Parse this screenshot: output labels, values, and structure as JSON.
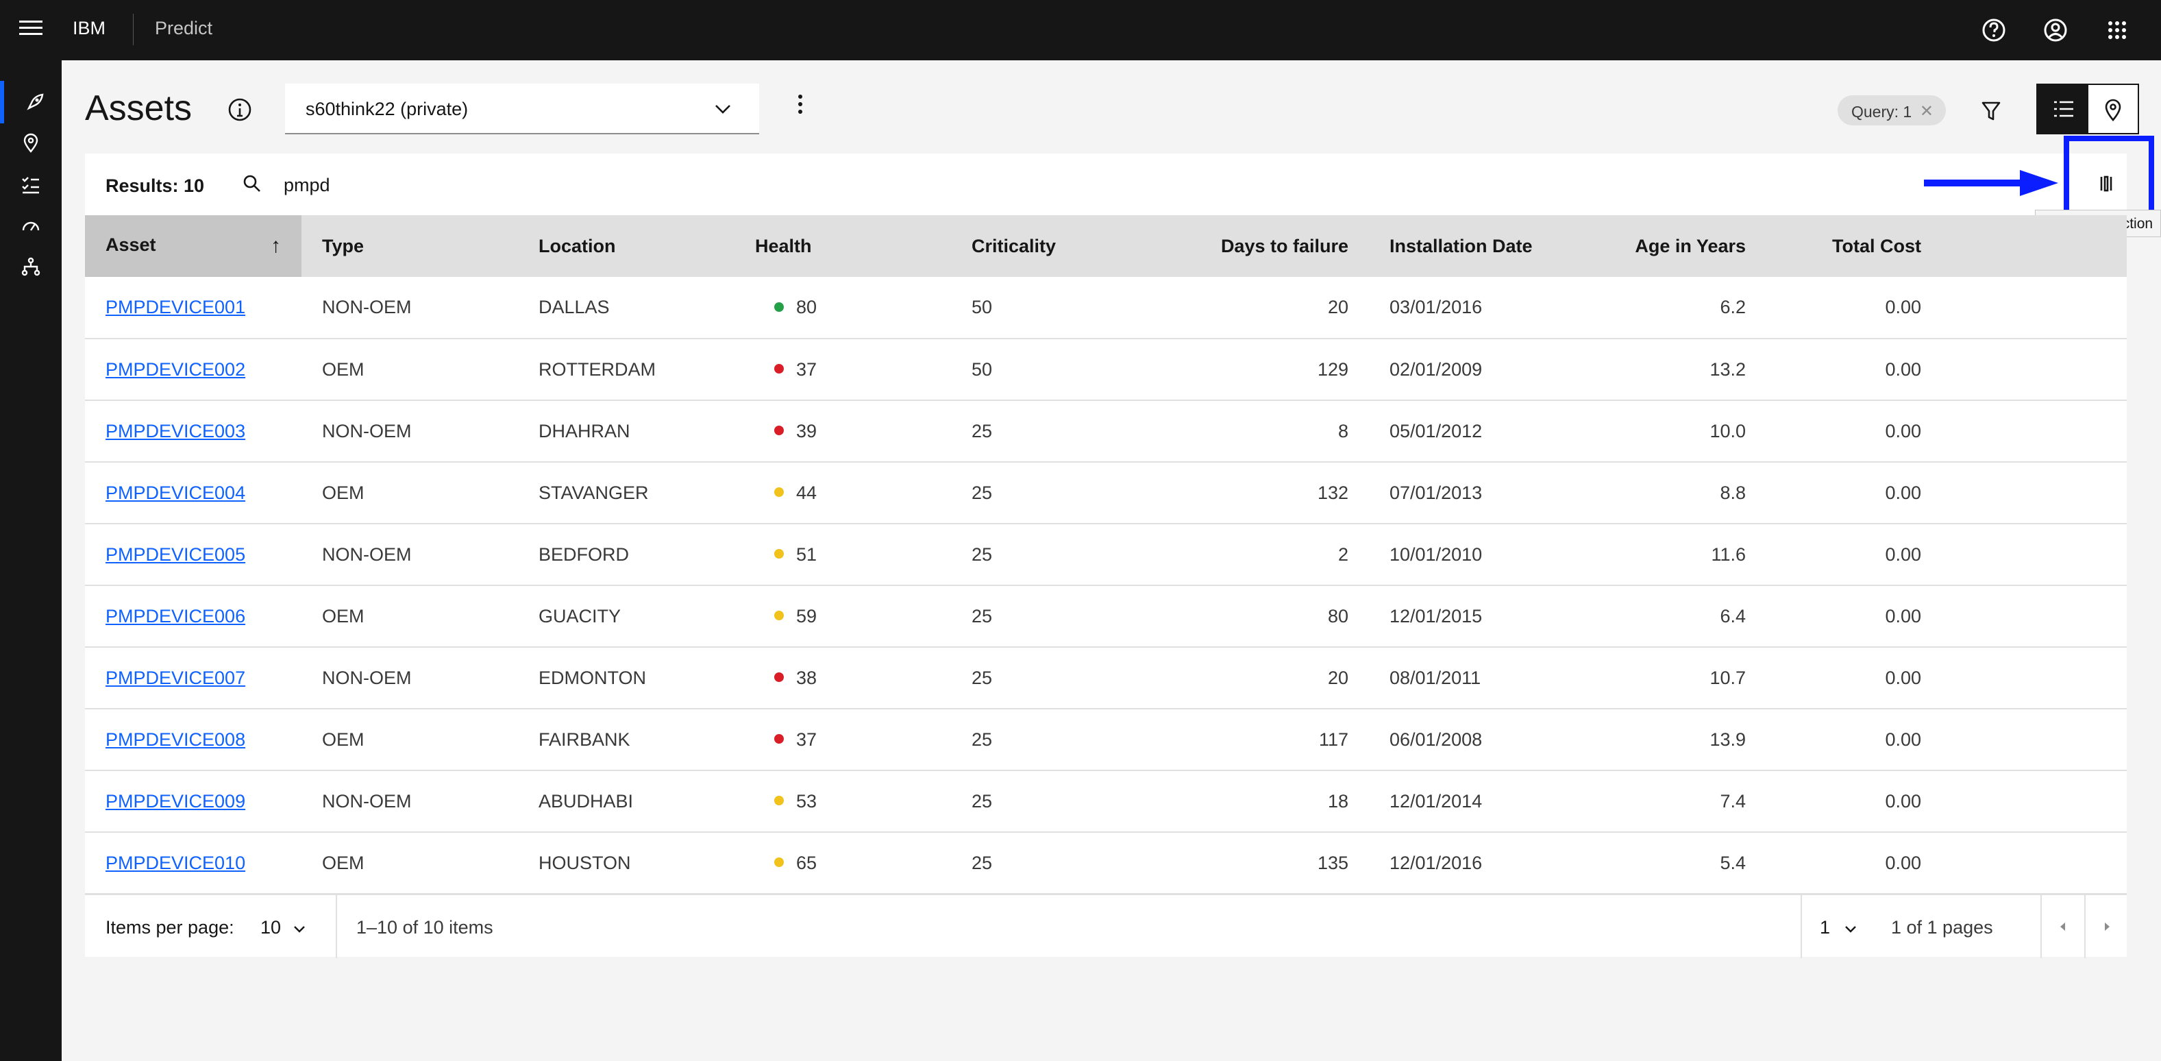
{
  "header": {
    "brand": "IBM",
    "product": "Predict",
    "icons": [
      "menu-icon",
      "help-icon",
      "user-icon",
      "app-switcher-icon"
    ]
  },
  "sidenav": {
    "items": [
      {
        "icon": "rocket-icon",
        "active": true
      },
      {
        "icon": "location-icon",
        "active": false
      },
      {
        "icon": "checklist-icon",
        "active": false
      },
      {
        "icon": "dashboard-icon",
        "active": false
      },
      {
        "icon": "hierarchy-icon",
        "active": false
      }
    ]
  },
  "page": {
    "title": "Assets",
    "group_select": "s60think22 (private)",
    "query_tag": "Query: 1",
    "query_tag_close": "✕"
  },
  "toolbar": {
    "results": "Results: 10",
    "search_value": "pmpd",
    "column_selection_tooltip": "Column selection"
  },
  "table": {
    "columns": [
      "Asset",
      "Type",
      "Location",
      "Health",
      "Criticality",
      "Days to failure",
      "Installation Date",
      "Age in Years",
      "Total Cost"
    ],
    "sorted_column": "Asset",
    "sort_direction": "ascending",
    "rows": [
      {
        "asset": "PMPDEVICE001",
        "type": "NON-OEM",
        "location": "DALLAS",
        "health": "80",
        "health_color": "#24a148",
        "criticality": "50",
        "days": "20",
        "install": "03/01/2016",
        "age": "6.2",
        "cost": "0.00"
      },
      {
        "asset": "PMPDEVICE002",
        "type": "OEM",
        "location": "ROTTERDAM",
        "health": "37",
        "health_color": "#da1e28",
        "criticality": "50",
        "days": "129",
        "install": "02/01/2009",
        "age": "13.2",
        "cost": "0.00"
      },
      {
        "asset": "PMPDEVICE003",
        "type": "NON-OEM",
        "location": "DHAHRAN",
        "health": "39",
        "health_color": "#da1e28",
        "criticality": "25",
        "days": "8",
        "install": "05/01/2012",
        "age": "10.0",
        "cost": "0.00"
      },
      {
        "asset": "PMPDEVICE004",
        "type": "OEM",
        "location": "STAVANGER",
        "health": "44",
        "health_color": "#f1c21b",
        "criticality": "25",
        "days": "132",
        "install": "07/01/2013",
        "age": "8.8",
        "cost": "0.00"
      },
      {
        "asset": "PMPDEVICE005",
        "type": "NON-OEM",
        "location": "BEDFORD",
        "health": "51",
        "health_color": "#f1c21b",
        "criticality": "25",
        "days": "2",
        "install": "10/01/2010",
        "age": "11.6",
        "cost": "0.00"
      },
      {
        "asset": "PMPDEVICE006",
        "type": "OEM",
        "location": "GUACITY",
        "health": "59",
        "health_color": "#f1c21b",
        "criticality": "25",
        "days": "80",
        "install": "12/01/2015",
        "age": "6.4",
        "cost": "0.00"
      },
      {
        "asset": "PMPDEVICE007",
        "type": "NON-OEM",
        "location": "EDMONTON",
        "health": "38",
        "health_color": "#da1e28",
        "criticality": "25",
        "days": "20",
        "install": "08/01/2011",
        "age": "10.7",
        "cost": "0.00"
      },
      {
        "asset": "PMPDEVICE008",
        "type": "OEM",
        "location": "FAIRBANK",
        "health": "37",
        "health_color": "#da1e28",
        "criticality": "25",
        "days": "117",
        "install": "06/01/2008",
        "age": "13.9",
        "cost": "0.00"
      },
      {
        "asset": "PMPDEVICE009",
        "type": "NON-OEM",
        "location": "ABUDHABI",
        "health": "53",
        "health_color": "#f1c21b",
        "criticality": "25",
        "days": "18",
        "install": "12/01/2014",
        "age": "7.4",
        "cost": "0.00"
      },
      {
        "asset": "PMPDEVICE010",
        "type": "OEM",
        "location": "HOUSTON",
        "health": "65",
        "health_color": "#f1c21b",
        "criticality": "25",
        "days": "135",
        "install": "12/01/2016",
        "age": "5.4",
        "cost": "0.00"
      }
    ]
  },
  "pagination": {
    "items_per_page_label": "Items per page:",
    "items_per_page": "10",
    "range": "1–10 of 10 items",
    "page": "1",
    "of_pages": "1 of 1 pages"
  },
  "colors": {
    "accent": "#0f62fe",
    "annotation": "#0a1eff",
    "health_good": "#24a148",
    "health_warn": "#f1c21b",
    "health_bad": "#da1e28"
  }
}
